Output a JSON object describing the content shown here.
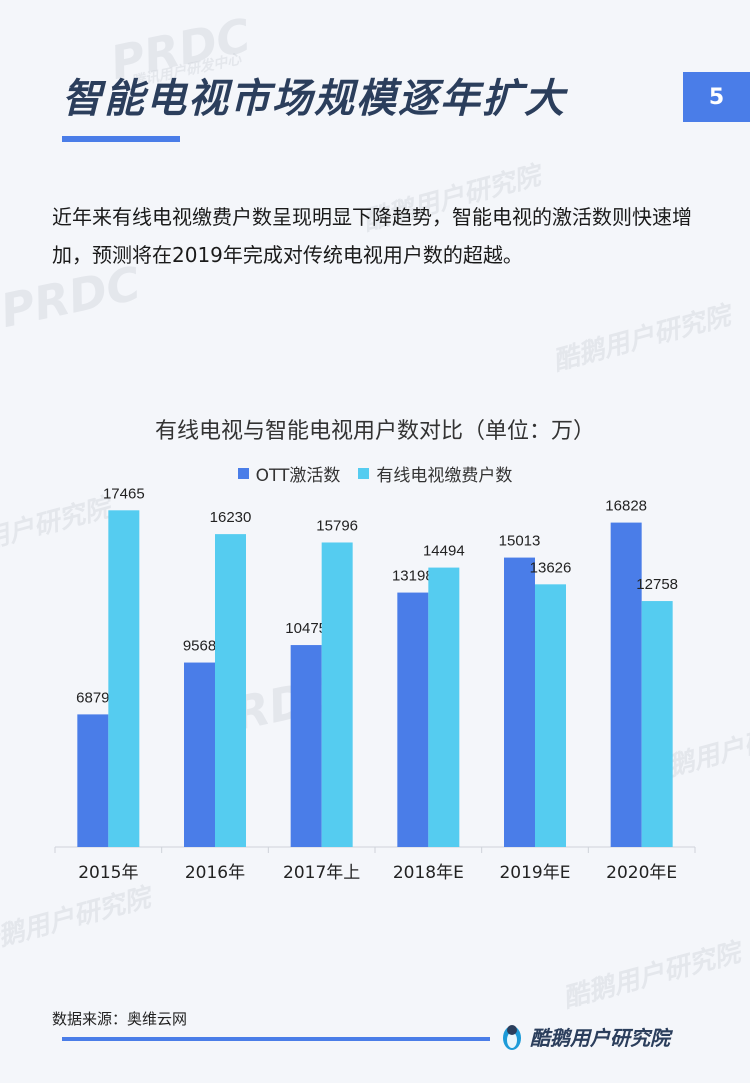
{
  "header": {
    "title": "智能电视市场规模逐年扩大",
    "page_number": "5"
  },
  "intro_text": "近年来有线电视缴费户数呈现明显下降趋势，智能电视的激活数则快速增加，预测将在2019年完成对传统电视用户数的超越。",
  "colors": {
    "accent": "#4a7de8",
    "ott": "#4a7de8",
    "cable": "#55ccf0"
  },
  "watermarks": {
    "prdc": "PRDC",
    "prdc_sub": "腾讯用户研发中心",
    "cn": "酷鹅用户研究院"
  },
  "chart_data": {
    "type": "bar",
    "title": "有线电视与智能电视用户数对比（单位：万）",
    "categories": [
      "2015年",
      "2016年",
      "2017年上",
      "2018年E",
      "2019年E",
      "2020年E"
    ],
    "series": [
      {
        "name": "OTT激活数",
        "values": [
          6879,
          9568,
          10475,
          13198,
          15013,
          16828
        ]
      },
      {
        "name": "有线电视缴费户数",
        "values": [
          17465,
          16230,
          15796,
          14494,
          13626,
          12758
        ]
      }
    ],
    "ylim": [
      0,
      18000
    ],
    "grid": false,
    "legend_position": "top"
  },
  "footer": {
    "source": "数据来源：奥维云网",
    "brand": "酷鹅用户研究院"
  }
}
